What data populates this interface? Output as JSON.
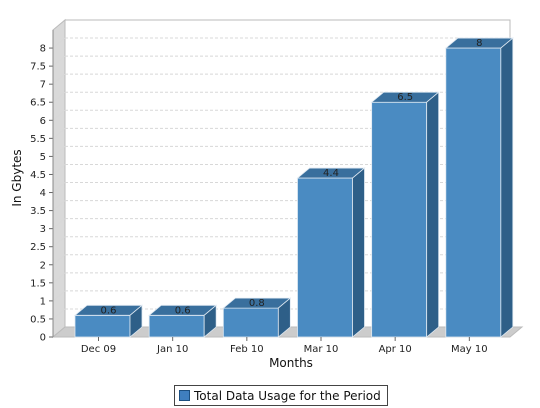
{
  "colors": {
    "bar_front": "#4a8bc2",
    "bar_top": "#396f9d",
    "bar_side": "#2e5f88",
    "bar_edge": "#dfe9f2",
    "wall_side": "#d9d9d9",
    "floor": "#cccccc",
    "plot_bg": "#ffffff",
    "grid": "#d8d8d8"
  },
  "legend": {
    "label": "Total Data Usage for the Period",
    "swatch_color": "#3f7fbf"
  },
  "chart_data": {
    "type": "bar",
    "style": "3d",
    "categories": [
      "Dec 09",
      "Jan 10",
      "Feb 10",
      "Mar 10",
      "Apr 10",
      "May 10"
    ],
    "series": [
      {
        "name": "Total Data Usage for the Period",
        "values": [
          0.6,
          0.6,
          0.8,
          4.4,
          6.5,
          8
        ]
      }
    ],
    "data_labels": [
      "0.6",
      "0.6",
      "0.8",
      "4.4",
      "6.5",
      "8"
    ],
    "xlabel": "Months",
    "ylabel": "In Gbytes",
    "ylim": [
      0,
      8.5
    ],
    "yticks": [
      "0",
      "0.5",
      "1",
      "1.5",
      "2",
      "2.5",
      "3",
      "3.5",
      "4",
      "4.5",
      "5",
      "5.5",
      "6",
      "6.5",
      "7",
      "7.5",
      "8"
    ],
    "grid": true,
    "legend_position": "bottom"
  }
}
